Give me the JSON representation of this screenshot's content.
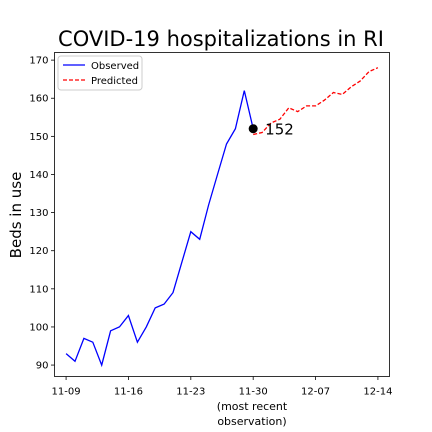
{
  "chart_data": {
    "type": "line",
    "title": "COVID-19 hospitalizations in RI",
    "xlabel": "",
    "ylabel": "Beds in use",
    "x_tick_labels": [
      "11-09",
      "11-16",
      "11-23",
      "11-30",
      "12-07",
      "12-14"
    ],
    "x_note": [
      "(most recent",
      "observation)"
    ],
    "ylim": [
      87,
      172
    ],
    "y_ticks": [
      90,
      100,
      110,
      120,
      130,
      140,
      150,
      160,
      170
    ],
    "grid": false,
    "legend_position": "top-left",
    "annotation": {
      "label": "152",
      "date": "11-30",
      "value": 152
    },
    "series": [
      {
        "name": "Observed",
        "style": "solid",
        "color": "#0000ff",
        "points": [
          [
            "11-09",
            93
          ],
          [
            "11-10",
            91
          ],
          [
            "11-11",
            97
          ],
          [
            "11-12",
            96
          ],
          [
            "11-13",
            90
          ],
          [
            "11-14",
            99
          ],
          [
            "11-15",
            100
          ],
          [
            "11-16",
            103
          ],
          [
            "11-17",
            96
          ],
          [
            "11-18",
            100
          ],
          [
            "11-19",
            105
          ],
          [
            "11-20",
            106
          ],
          [
            "11-21",
            109
          ],
          [
            "11-22",
            117
          ],
          [
            "11-23",
            125
          ],
          [
            "11-24",
            123
          ],
          [
            "11-25",
            132
          ],
          [
            "11-26",
            140
          ],
          [
            "11-27",
            148
          ],
          [
            "11-28",
            152
          ],
          [
            "11-29",
            162
          ],
          [
            "11-30",
            152
          ]
        ]
      },
      {
        "name": "Predicted",
        "style": "dashed",
        "color": "#ff0000",
        "points": [
          [
            "11-30",
            150.5
          ],
          [
            "12-01",
            151
          ],
          [
            "12-02",
            153.5
          ],
          [
            "12-03",
            154.5
          ],
          [
            "12-04",
            157.5
          ],
          [
            "12-05",
            156.5
          ],
          [
            "12-06",
            158
          ],
          [
            "12-07",
            158
          ],
          [
            "12-08",
            159.5
          ],
          [
            "12-09",
            161.5
          ],
          [
            "12-10",
            161
          ],
          [
            "12-11",
            163
          ],
          [
            "12-12",
            164.5
          ],
          [
            "12-13",
            167
          ],
          [
            "12-14",
            168
          ]
        ]
      }
    ]
  }
}
